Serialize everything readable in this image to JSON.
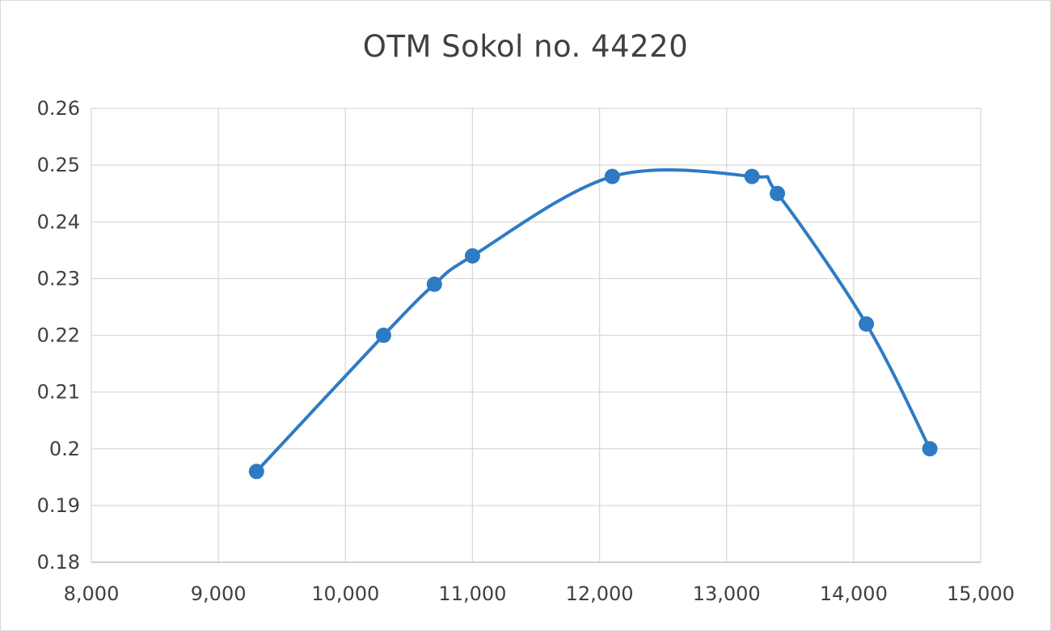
{
  "chart_data": {
    "type": "line",
    "title": "OTM Sokol no. 44220",
    "xlabel": "",
    "ylabel": "",
    "xlim": [
      8000,
      15000
    ],
    "ylim": [
      0.18,
      0.26
    ],
    "x_ticks": [
      "8,000",
      "9,000",
      "10,000",
      "11,000",
      "12,000",
      "13,000",
      "14,000",
      "15,000"
    ],
    "y_ticks": [
      "0.18",
      "0.19",
      "0.2",
      "0.21",
      "0.22",
      "0.23",
      "0.24",
      "0.25",
      "0.26"
    ],
    "x_tick_values": [
      8000,
      9000,
      10000,
      11000,
      12000,
      13000,
      14000,
      15000
    ],
    "y_tick_values": [
      0.18,
      0.19,
      0.2,
      0.21,
      0.22,
      0.23,
      0.24,
      0.25,
      0.26
    ],
    "grid": true,
    "smooth": true,
    "color": "#2e7bc4",
    "series": [
      {
        "x": [
          9300,
          10300,
          10700,
          11000,
          12100,
          13200,
          13400,
          14100,
          14600
        ],
        "y": [
          0.196,
          0.22,
          0.229,
          0.234,
          0.248,
          0.248,
          0.245,
          0.222,
          0.2
        ]
      }
    ]
  }
}
